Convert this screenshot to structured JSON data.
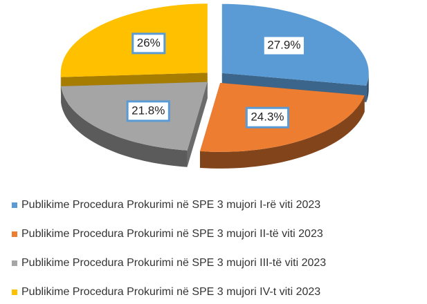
{
  "chart_data": {
    "type": "pie",
    "categories": [
      "Publikime Procedura Prokurimi në SPE 3 mujori I-rë viti 2023",
      "Publikime Procedura Prokurimi në SPE 3 mujori II-të viti 2023",
      "Publikime Procedura Prokurimi në SPE 3 mujori III-të viti 2023",
      "Publikime Procedura Prokurimi në SPE 3 mujori IV-t viti 2023"
    ],
    "values": [
      27.9,
      24.3,
      21.8,
      26
    ],
    "value_labels": [
      "27.9%",
      "24.3%",
      "21.8%",
      "26%"
    ],
    "colors": [
      "#5b9bd5",
      "#ed7d31",
      "#a5a5a5",
      "#ffc000"
    ],
    "legend": "bottom"
  }
}
